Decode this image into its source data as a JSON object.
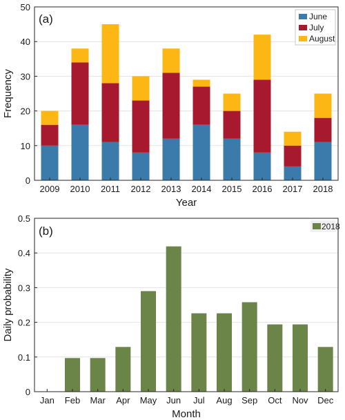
{
  "chart_data": [
    {
      "type": "bar",
      "stacked": true,
      "panel_label": "(a)",
      "title": "",
      "xlabel": "Year",
      "ylabel": "Frequency",
      "categories": [
        "2009",
        "2010",
        "2011",
        "2012",
        "2013",
        "2014",
        "2015",
        "2016",
        "2017",
        "2018"
      ],
      "series": [
        {
          "name": "June",
          "color": "#3a7bab",
          "values": [
            10,
            16,
            11,
            8,
            12,
            16,
            12,
            8,
            4,
            11
          ]
        },
        {
          "name": "July",
          "color": "#a6192e",
          "values": [
            6,
            18,
            17,
            15,
            19,
            11,
            8,
            21,
            6,
            7
          ]
        },
        {
          "name": "August",
          "color": "#fdb714",
          "values": [
            4,
            4,
            17,
            7,
            7,
            2,
            5,
            13,
            4,
            7
          ]
        }
      ],
      "ylim": [
        0,
        50
      ],
      "yticks": [
        0,
        10,
        20,
        30,
        40,
        50
      ],
      "grid": true,
      "legend_position": "top-right"
    },
    {
      "type": "bar",
      "panel_label": "(b)",
      "title": "",
      "xlabel": "Month",
      "ylabel": "Daily probability",
      "categories": [
        "Jan",
        "Feb",
        "Mar",
        "Apr",
        "May",
        "Jun",
        "Jul",
        "Aug",
        "Sep",
        "Oct",
        "Nov",
        "Dec"
      ],
      "series": [
        {
          "name": "2018",
          "color": "#6b8549",
          "values": [
            0,
            0.097,
            0.097,
            0.129,
            0.29,
            0.419,
            0.226,
            0.226,
            0.258,
            0.194,
            0.194,
            0.129
          ]
        }
      ],
      "ylim": [
        0,
        0.5
      ],
      "yticks": [
        "0",
        "0.1",
        "0.2",
        "0.3",
        "0.4",
        "0.5"
      ],
      "grid": true,
      "legend_position": "top-right"
    }
  ]
}
